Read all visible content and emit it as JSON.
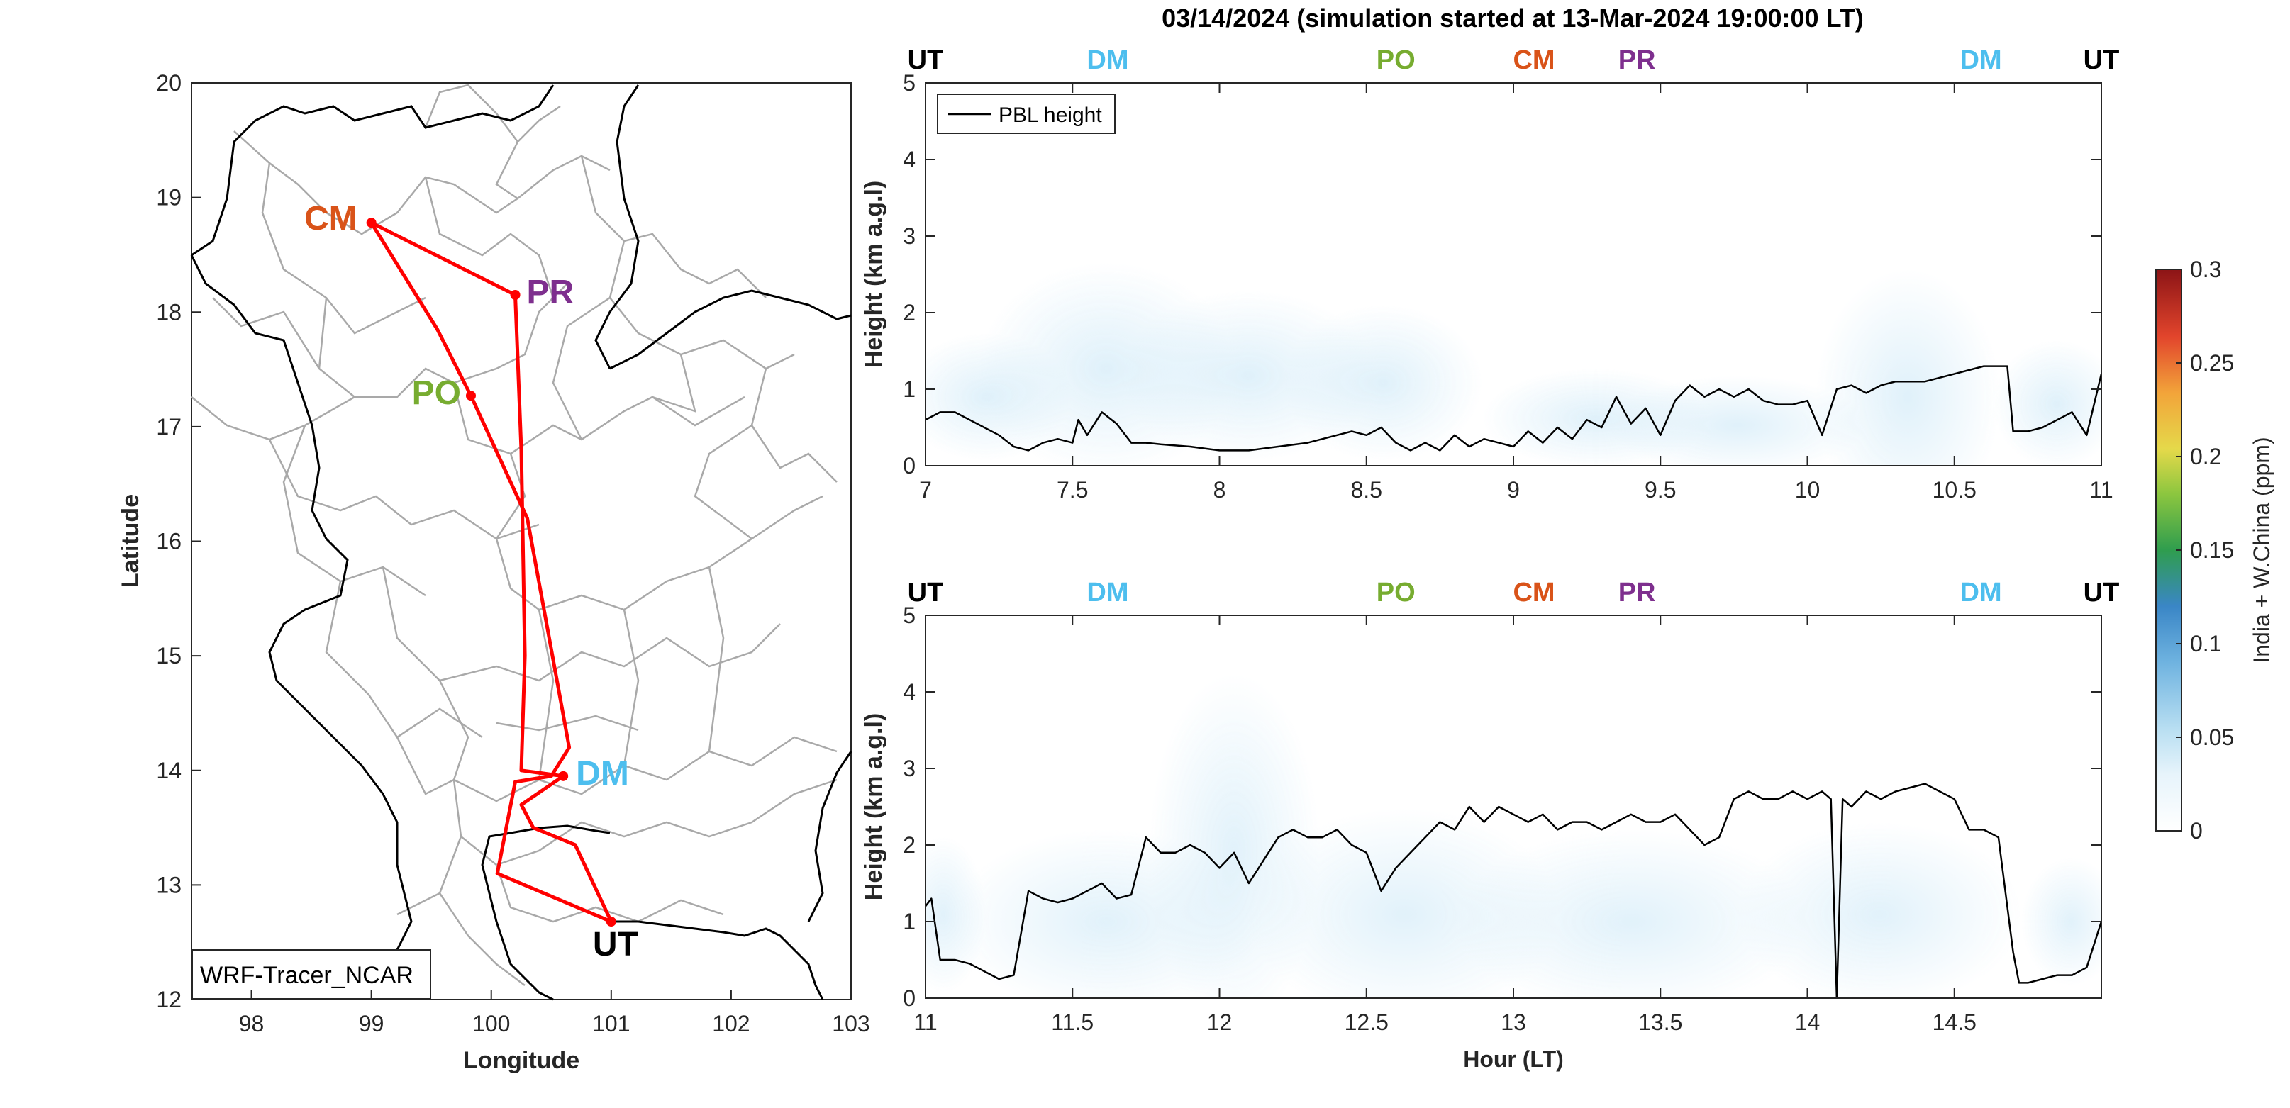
{
  "figure": {
    "title": "03/14/2024 (simulation started at 13-Mar-2024 19:00:00 LT)"
  },
  "map": {
    "xlabel": "Longitude",
    "ylabel": "Latitude",
    "xlim": [
      97.5,
      103
    ],
    "ylim": [
      12,
      20
    ],
    "xticks": [
      "98",
      "99",
      "100",
      "101",
      "102",
      "103"
    ],
    "yticks": [
      "12",
      "13",
      "14",
      "15",
      "16",
      "17",
      "18",
      "19",
      "20"
    ],
    "model_label": "WRF-Tracer_NCAR",
    "route_color": "#ff0000",
    "stations": [
      {
        "code": "CM",
        "lon": 99.0,
        "lat": 18.78,
        "color": "#d95319"
      },
      {
        "code": "PR",
        "lon": 100.2,
        "lat": 18.15,
        "color": "#7e2f8e"
      },
      {
        "code": "PO",
        "lon": 99.83,
        "lat": 17.27,
        "color": "#77ac30"
      },
      {
        "code": "DM",
        "lon": 100.6,
        "lat": 13.95,
        "color": "#4dbeee"
      },
      {
        "code": "UT",
        "lon": 101.0,
        "lat": 12.68,
        "color": "#000000"
      }
    ]
  },
  "chart_data": [
    {
      "type": "line",
      "panel": "top",
      "ylabel": "Height (km a.g.l)",
      "xlim": [
        7,
        11
      ],
      "ylim": [
        0,
        5
      ],
      "xticks": [
        "7",
        "7.5",
        "8",
        "8.5",
        "9",
        "9.5",
        "10",
        "10.5",
        "11"
      ],
      "yticks": [
        "0",
        "1",
        "2",
        "3",
        "4",
        "5"
      ],
      "legend": "PBL height",
      "legend_position": "top-left",
      "station_markers": [
        {
          "code": "UT",
          "x": 7.0,
          "color": "#000000"
        },
        {
          "code": "DM",
          "x": 7.62,
          "color": "#4dbeee"
        },
        {
          "code": "PO",
          "x": 8.6,
          "color": "#77ac30"
        },
        {
          "code": "CM",
          "x": 9.07,
          "color": "#d95319"
        },
        {
          "code": "PR",
          "x": 9.42,
          "color": "#7e2f8e"
        },
        {
          "code": "DM",
          "x": 10.59,
          "color": "#4dbeee"
        },
        {
          "code": "UT",
          "x": 11.0,
          "color": "#000000"
        }
      ],
      "series": [
        {
          "name": "PBL height",
          "x": [
            7.0,
            7.05,
            7.1,
            7.15,
            7.2,
            7.25,
            7.3,
            7.35,
            7.4,
            7.45,
            7.5,
            7.52,
            7.55,
            7.6,
            7.65,
            7.7,
            7.75,
            7.8,
            7.9,
            8.0,
            8.1,
            8.2,
            8.3,
            8.4,
            8.45,
            8.5,
            8.55,
            8.6,
            8.65,
            8.7,
            8.75,
            8.8,
            8.85,
            8.9,
            8.95,
            9.0,
            9.05,
            9.1,
            9.15,
            9.2,
            9.25,
            9.3,
            9.35,
            9.4,
            9.45,
            9.5,
            9.55,
            9.6,
            9.65,
            9.7,
            9.75,
            9.8,
            9.85,
            9.9,
            9.95,
            10.0,
            10.05,
            10.1,
            10.15,
            10.2,
            10.25,
            10.3,
            10.35,
            10.4,
            10.45,
            10.5,
            10.55,
            10.6,
            10.65,
            10.68,
            10.7,
            10.75,
            10.8,
            10.85,
            10.9,
            10.95,
            11.0
          ],
          "y": [
            0.6,
            0.7,
            0.7,
            0.6,
            0.5,
            0.4,
            0.25,
            0.2,
            0.3,
            0.35,
            0.3,
            0.6,
            0.4,
            0.7,
            0.55,
            0.3,
            0.3,
            0.28,
            0.25,
            0.2,
            0.2,
            0.25,
            0.3,
            0.4,
            0.45,
            0.4,
            0.5,
            0.3,
            0.2,
            0.3,
            0.2,
            0.4,
            0.25,
            0.35,
            0.3,
            0.25,
            0.45,
            0.3,
            0.5,
            0.35,
            0.6,
            0.5,
            0.9,
            0.55,
            0.75,
            0.4,
            0.85,
            1.05,
            0.9,
            1.0,
            0.9,
            1.0,
            0.85,
            0.8,
            0.8,
            0.85,
            0.4,
            1.0,
            1.05,
            0.95,
            1.05,
            1.1,
            1.1,
            1.1,
            1.15,
            1.2,
            1.25,
            1.3,
            1.3,
            1.3,
            0.45,
            0.45,
            0.5,
            0.6,
            0.7,
            0.4,
            1.2
          ]
        }
      ]
    },
    {
      "type": "line",
      "panel": "bottom",
      "ylabel": "Height (km a.g.l)",
      "xlabel": "Hour (LT)",
      "xlim": [
        11,
        15
      ],
      "ylim": [
        0,
        5
      ],
      "xticks": [
        "11",
        "11.5",
        "12",
        "12.5",
        "13",
        "13.5",
        "14",
        "14.5"
      ],
      "yticks": [
        "0",
        "1",
        "2",
        "3",
        "4",
        "5"
      ],
      "station_markers": [
        {
          "code": "UT",
          "x": 11.0,
          "color": "#000000"
        },
        {
          "code": "DM",
          "x": 11.62,
          "color": "#4dbeee"
        },
        {
          "code": "PO",
          "x": 12.6,
          "color": "#77ac30"
        },
        {
          "code": "CM",
          "x": 13.07,
          "color": "#d95319"
        },
        {
          "code": "PR",
          "x": 13.42,
          "color": "#7e2f8e"
        },
        {
          "code": "DM",
          "x": 14.59,
          "color": "#4dbeee"
        },
        {
          "code": "UT",
          "x": 15.0,
          "color": "#000000"
        }
      ],
      "series": [
        {
          "name": "PBL height",
          "x": [
            11.0,
            11.02,
            11.05,
            11.1,
            11.15,
            11.2,
            11.25,
            11.3,
            11.35,
            11.4,
            11.45,
            11.5,
            11.55,
            11.6,
            11.65,
            11.7,
            11.75,
            11.8,
            11.85,
            11.9,
            11.95,
            12.0,
            12.05,
            12.1,
            12.15,
            12.2,
            12.25,
            12.3,
            12.35,
            12.4,
            12.45,
            12.5,
            12.55,
            12.6,
            12.65,
            12.7,
            12.75,
            12.8,
            12.85,
            12.9,
            12.95,
            13.0,
            13.05,
            13.1,
            13.15,
            13.2,
            13.25,
            13.3,
            13.35,
            13.4,
            13.45,
            13.5,
            13.55,
            13.6,
            13.65,
            13.7,
            13.75,
            13.8,
            13.85,
            13.9,
            13.95,
            14.0,
            14.05,
            14.08,
            14.1,
            14.12,
            14.15,
            14.2,
            14.25,
            14.3,
            14.35,
            14.4,
            14.45,
            14.5,
            14.55,
            14.6,
            14.65,
            14.7,
            14.72,
            14.75,
            14.8,
            14.85,
            14.9,
            14.95,
            15.0
          ],
          "y": [
            1.2,
            1.3,
            0.5,
            0.5,
            0.45,
            0.35,
            0.25,
            0.3,
            1.4,
            1.3,
            1.25,
            1.3,
            1.4,
            1.5,
            1.3,
            1.35,
            2.1,
            1.9,
            1.9,
            2.0,
            1.9,
            1.7,
            1.9,
            1.5,
            1.8,
            2.1,
            2.2,
            2.1,
            2.1,
            2.2,
            2.0,
            1.9,
            1.4,
            1.7,
            1.9,
            2.1,
            2.3,
            2.2,
            2.5,
            2.3,
            2.5,
            2.4,
            2.3,
            2.4,
            2.2,
            2.3,
            2.3,
            2.2,
            2.3,
            2.4,
            2.3,
            2.3,
            2.4,
            2.2,
            2.0,
            2.1,
            2.6,
            2.7,
            2.6,
            2.6,
            2.7,
            2.6,
            2.7,
            2.6,
            0.0,
            2.6,
            2.5,
            2.7,
            2.6,
            2.7,
            2.75,
            2.8,
            2.7,
            2.6,
            2.2,
            2.2,
            2.1,
            0.6,
            0.2,
            0.2,
            0.25,
            0.3,
            0.3,
            0.4,
            1.0
          ]
        }
      ]
    }
  ],
  "colorbar": {
    "label": "India + W.China (ppm)",
    "ticks": [
      "0",
      "0.05",
      "0.1",
      "0.15",
      "0.2",
      "0.25",
      "0.3"
    ],
    "range": [
      0,
      0.3
    ],
    "colors": [
      "#ffffff",
      "#cde8f6",
      "#9ccde8",
      "#3c8ecb",
      "#2f9d4e",
      "#e1d344",
      "#f0a42f",
      "#e2452c",
      "#8c1416"
    ]
  }
}
